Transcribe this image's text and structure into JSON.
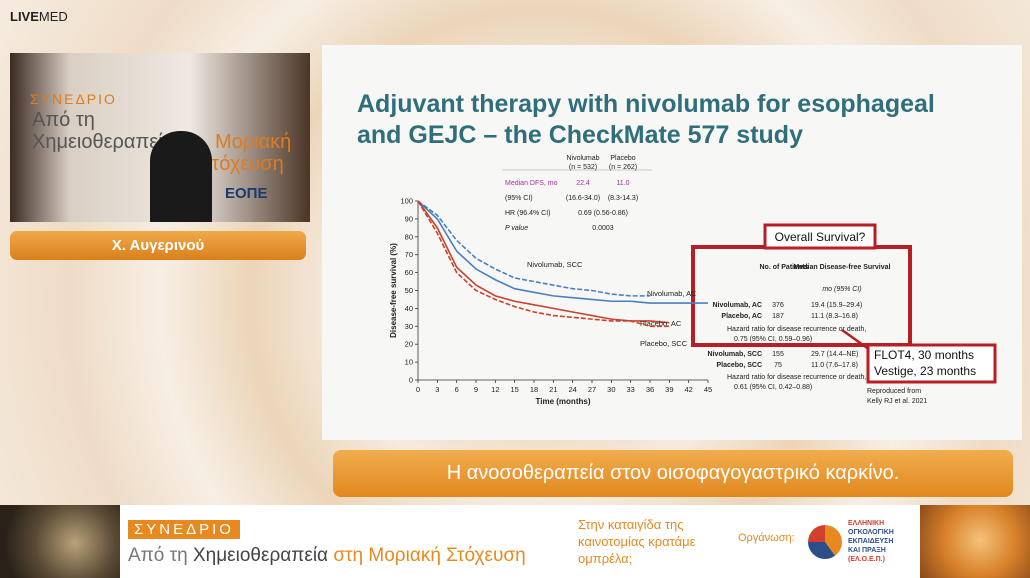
{
  "header": {
    "brand_bold": "LIVE",
    "brand": "MED"
  },
  "video": {
    "banner": [
      "ΣΥΝΕΔΡΙΟ",
      "Από τη",
      "Χημειοθεραπεία",
      "Μοριακή",
      "Στόχευση",
      "ΕΟΠΕ"
    ],
    "speaker": "Χ. Αυγερινού"
  },
  "slide": {
    "title": "Adjuvant therapy with nivolumab for esophageal and GEJC – the CheckMate 577 study",
    "summary_table": {
      "headers": [
        [
          "Nivolumab",
          "(n = 532)"
        ],
        [
          "Placebo",
          "(n = 262)"
        ]
      ],
      "rows": [
        [
          "Median DFS, mo",
          "22.4",
          "11.0"
        ],
        [
          "(95% CI)",
          "(16.6-34.0)",
          "(8.3-14.3)"
        ],
        [
          "HR (96.4% CI)",
          "0.69 (0.56-0.86)"
        ],
        [
          "P value",
          "0.0003"
        ]
      ]
    },
    "chart_data": {
      "type": "line",
      "ylabel": "Disease-free survival (%)",
      "xlabel": "Time (months)",
      "x": [
        0,
        3,
        6,
        9,
        12,
        15,
        18,
        21,
        24,
        27,
        30,
        33,
        36,
        39,
        42,
        45
      ],
      "xlim": [
        0,
        45
      ],
      "xticks": [
        0,
        3,
        6,
        9,
        12,
        15,
        18,
        21,
        24,
        27,
        30,
        33,
        36,
        39,
        42,
        45
      ],
      "ylim": [
        0,
        100
      ],
      "yticks": [
        0,
        10,
        20,
        30,
        40,
        50,
        60,
        70,
        80,
        90,
        100
      ],
      "series": [
        {
          "name": "Nivolumab, SCC",
          "color": "#4a7fc1",
          "style": "dashed",
          "values": [
            100,
            92,
            78,
            68,
            62,
            57,
            55,
            53,
            51,
            50,
            48,
            47,
            47,
            null,
            null,
            null
          ]
        },
        {
          "name": "Nivolumab, AC",
          "color": "#4a7fc1",
          "style": "solid",
          "values": [
            100,
            90,
            72,
            62,
            56,
            51,
            49,
            47,
            46,
            45,
            44,
            44,
            43,
            43,
            43,
            43
          ]
        },
        {
          "name": "Placebo, AC",
          "color": "#c8432f",
          "style": "solid",
          "values": [
            100,
            85,
            63,
            53,
            47,
            44,
            42,
            40,
            38,
            36,
            34,
            33,
            33,
            32,
            null,
            null
          ]
        },
        {
          "name": "Placebo, SCC",
          "color": "#c8432f",
          "style": "dashed",
          "values": [
            100,
            82,
            60,
            50,
            45,
            41,
            38,
            36,
            35,
            34,
            33,
            33,
            30,
            30,
            null,
            null
          ]
        }
      ]
    },
    "os_question": "Overall Survival?",
    "subgroup_table": {
      "headers": [
        "No. of Patients",
        "Median Disease-free Survival",
        "mo (95% CI)"
      ],
      "rows": [
        [
          "Nivolumab, AC",
          "376",
          "19.4 (15.9–29.4)"
        ],
        [
          "Placebo, AC",
          "187",
          "11.1 (8.3–16.8)"
        ],
        [
          "Nivolumab, SCC",
          "155",
          "29.7 (14.4–NE)"
        ],
        [
          "Placebo, SCC",
          "75",
          "11.0 (7.6–17.8)"
        ]
      ],
      "hr": [
        [
          "Hazard ratio for disease recurrence or death,",
          "0.75 (95% CI, 0.59–0.96)"
        ],
        [
          "Hazard ratio for disease recurrence or death,",
          "0.61 (95% CI, 0.42–0.88)"
        ]
      ]
    },
    "comparators": [
      "FLOT4, 30 months",
      "Vestige, 23 months"
    ],
    "source": [
      "Reproduced from",
      "Kelly RJ et al. 2021"
    ]
  },
  "caption": "Η ανοσοθεραπεία στον οισοφαγογαστρικό καρκίνο.",
  "footer": {
    "badge": "ΣΥΝΕΔΡΙΟ",
    "title_parts": [
      "Από τη",
      "Χημειοθεραπεία",
      "στη Μοριακή Στόχευση"
    ],
    "slogan": "Στην καταιγίδα της καινοτομίας κρατάμε ομπρέλα;",
    "organizer_label": "Οργάνωση:",
    "organizer": [
      "ΕΛΛΗΝΙΚΗ",
      "ΟΓΚΟΛΟΓΙΚΗ",
      "ΕΚΠΑΙΔΕΥΣΗ",
      "ΚΑΙ ΠΡΑΞΗ",
      "(ΕΛ.Ο.Ε.Π.)"
    ]
  }
}
